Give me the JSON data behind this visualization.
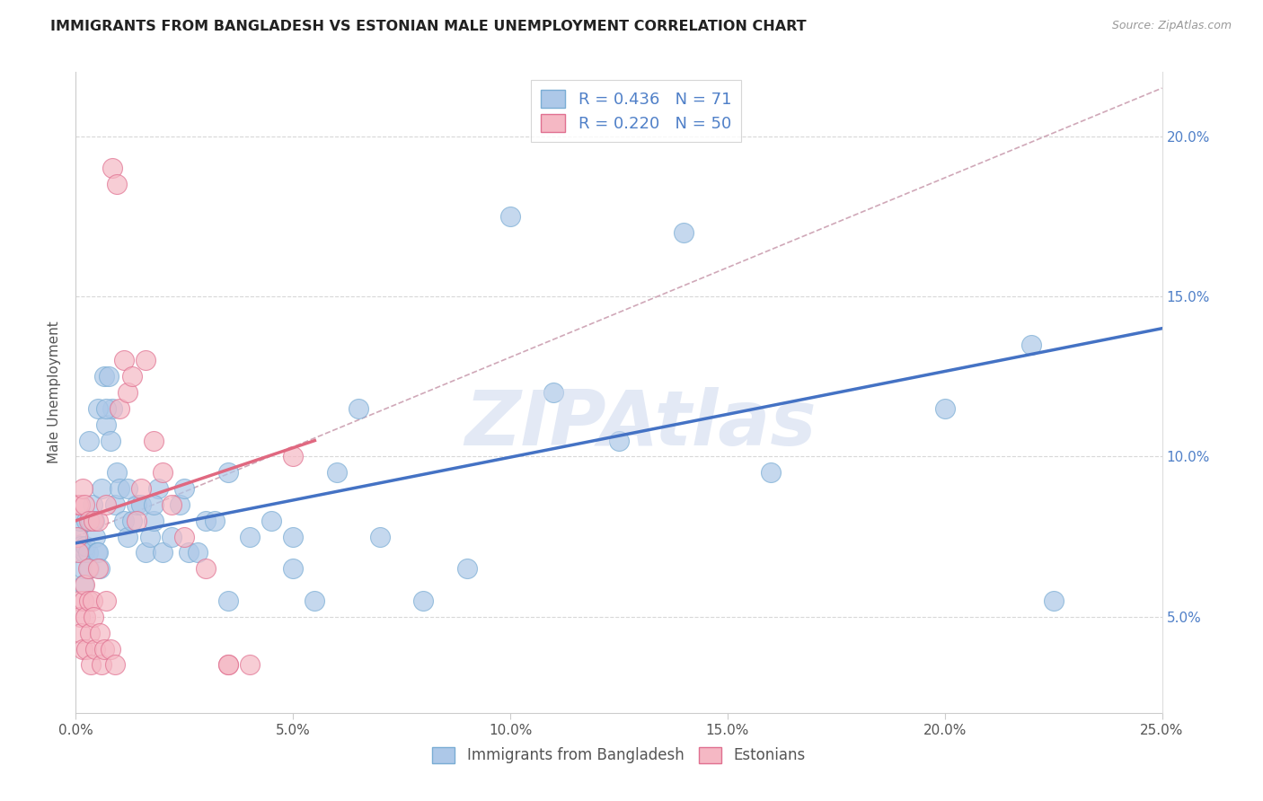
{
  "title": "IMMIGRANTS FROM BANGLADESH VS ESTONIAN MALE UNEMPLOYMENT CORRELATION CHART",
  "source": "Source: ZipAtlas.com",
  "ylabel": "Male Unemployment",
  "xlim": [
    0,
    25
  ],
  "ylim": [
    2,
    22
  ],
  "x_ticks": [
    0,
    5,
    10,
    15,
    20,
    25
  ],
  "y_ticks": [
    5,
    10,
    15,
    20
  ],
  "series1_label": "Immigrants from Bangladesh",
  "series2_label": "Estonians",
  "series1_R": 0.436,
  "series1_N": 71,
  "series2_R": 0.22,
  "series2_N": 50,
  "blue_face": "#adc8e8",
  "blue_edge": "#7aadd4",
  "pink_face": "#f5b8c4",
  "pink_edge": "#e07090",
  "trend_blue": "#4472c4",
  "trend_pink": "#e06880",
  "diag_color": "#d0a8b8",
  "watermark": "ZIPAtlas",
  "watermark_color": "#ccd8ee",
  "grid_color": "#d8d8d8",
  "title_color": "#222222",
  "source_color": "#999999",
  "label_color": "#555555",
  "tick_color": "#5080c8",
  "blue_x": [
    0.05,
    0.08,
    0.1,
    0.12,
    0.15,
    0.18,
    0.2,
    0.22,
    0.25,
    0.28,
    0.3,
    0.33,
    0.35,
    0.38,
    0.4,
    0.42,
    0.45,
    0.48,
    0.5,
    0.55,
    0.6,
    0.65,
    0.7,
    0.75,
    0.8,
    0.85,
    0.9,
    0.95,
    1.0,
    1.1,
    1.2,
    1.3,
    1.4,
    1.5,
    1.6,
    1.7,
    1.8,
    1.9,
    2.0,
    2.2,
    2.4,
    2.6,
    2.8,
    3.0,
    3.2,
    3.5,
    4.0,
    4.5,
    5.0,
    5.5,
    6.0,
    6.5,
    7.0,
    8.0,
    9.0,
    10.0,
    11.0,
    12.5,
    14.0,
    16.0,
    20.0,
    22.0,
    22.5,
    0.3,
    0.5,
    0.7,
    1.2,
    1.8,
    2.5,
    3.5,
    5.0
  ],
  "blue_y": [
    7.5,
    7.0,
    8.0,
    7.2,
    6.5,
    6.0,
    7.0,
    7.2,
    8.0,
    7.0,
    6.5,
    8.0,
    8.0,
    8.5,
    8.0,
    8.0,
    7.5,
    7.0,
    7.0,
    6.5,
    9.0,
    12.5,
    11.0,
    12.5,
    10.5,
    11.5,
    8.5,
    9.5,
    9.0,
    8.0,
    7.5,
    8.0,
    8.5,
    8.5,
    7.0,
    7.5,
    8.0,
    9.0,
    7.0,
    7.5,
    8.5,
    7.0,
    7.0,
    8.0,
    8.0,
    9.5,
    7.5,
    8.0,
    7.5,
    5.5,
    9.5,
    11.5,
    7.5,
    5.5,
    6.5,
    17.5,
    12.0,
    10.5,
    17.0,
    9.5,
    11.5,
    13.5,
    5.5,
    10.5,
    11.5,
    11.5,
    9.0,
    8.5,
    9.0,
    5.5,
    6.5
  ],
  "pink_x": [
    0.03,
    0.05,
    0.08,
    0.1,
    0.12,
    0.15,
    0.18,
    0.2,
    0.22,
    0.25,
    0.28,
    0.3,
    0.33,
    0.35,
    0.38,
    0.4,
    0.45,
    0.5,
    0.55,
    0.6,
    0.65,
    0.7,
    0.8,
    0.9,
    1.0,
    1.1,
    1.2,
    1.3,
    1.4,
    1.5,
    1.6,
    1.8,
    2.0,
    2.2,
    2.5,
    3.0,
    3.5,
    4.0,
    5.0,
    0.05,
    0.1,
    0.15,
    0.2,
    0.3,
    0.4,
    0.5,
    0.7,
    0.85,
    0.95,
    3.5
  ],
  "pink_y": [
    7.5,
    7.0,
    5.5,
    5.0,
    4.5,
    4.0,
    5.5,
    6.0,
    5.0,
    4.0,
    6.5,
    5.5,
    4.5,
    3.5,
    5.5,
    5.0,
    4.0,
    6.5,
    4.5,
    3.5,
    4.0,
    5.5,
    4.0,
    3.5,
    11.5,
    13.0,
    12.0,
    12.5,
    8.0,
    9.0,
    13.0,
    10.5,
    9.5,
    8.5,
    7.5,
    6.5,
    3.5,
    3.5,
    10.0,
    8.5,
    8.5,
    9.0,
    8.5,
    8.0,
    8.0,
    8.0,
    8.5,
    19.0,
    18.5,
    3.5
  ],
  "blue_trend_x0": 0.0,
  "blue_trend_y0": 7.3,
  "blue_trend_x1": 25.0,
  "blue_trend_y1": 14.0,
  "pink_trend_x0": 0.0,
  "pink_trend_y0": 8.0,
  "pink_trend_x1": 5.5,
  "pink_trend_y1": 10.5,
  "diag_x0": 0.0,
  "diag_y0": 7.5,
  "diag_x1": 25.0,
  "diag_y1": 21.5
}
